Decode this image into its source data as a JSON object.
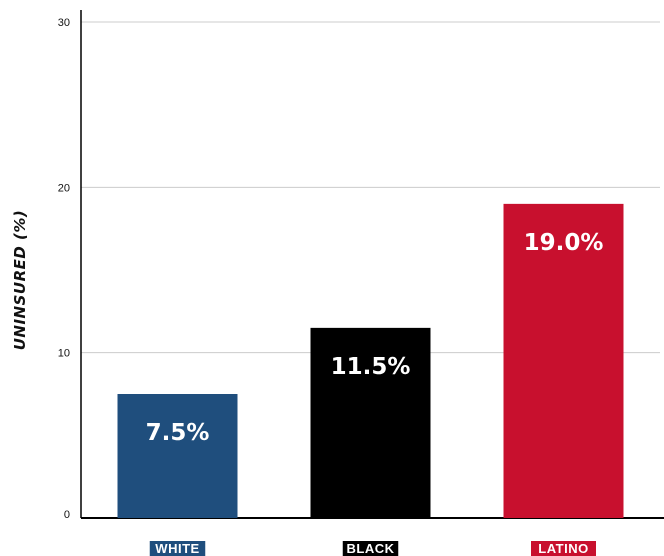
{
  "chart_data": {
    "type": "bar",
    "ylabel": "UNINSURED (%)",
    "ylim": [
      0,
      30
    ],
    "yticks": [
      0,
      10,
      20,
      30
    ],
    "grid": true,
    "categories": [
      "WHITE",
      "BLACK",
      "LATINO"
    ],
    "values": [
      7.5,
      11.5,
      19.0
    ],
    "data_labels": [
      "7.5%",
      "11.5%",
      "19.0%"
    ],
    "colors": [
      "#1f4e7d",
      "#000000",
      "#c8102e"
    ]
  }
}
